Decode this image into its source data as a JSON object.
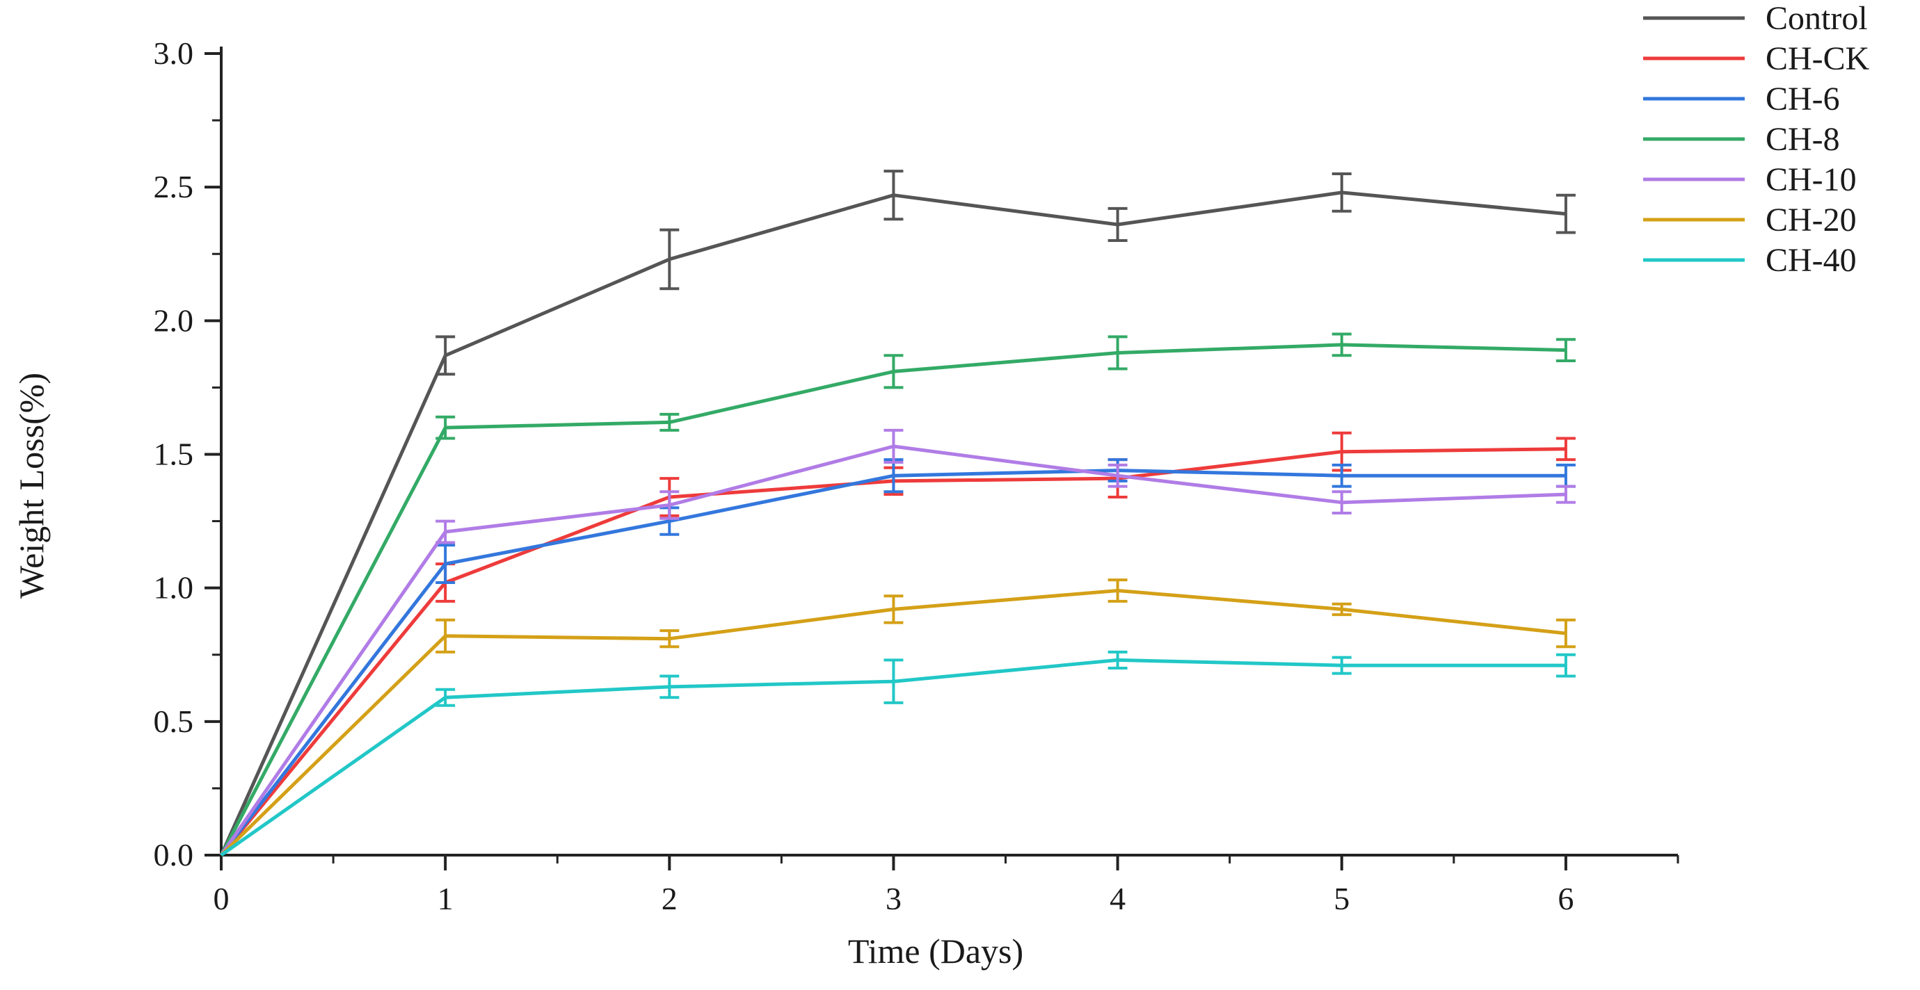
{
  "chart_data": {
    "type": "line",
    "title": "",
    "xlabel": "Time (Days)",
    "ylabel": "Weight Loss(%)",
    "x": [
      0,
      1,
      2,
      3,
      4,
      5,
      6
    ],
    "x_tick_labels": [
      "0",
      "1",
      "2",
      "3",
      "4",
      "5",
      "6"
    ],
    "xlim": [
      0,
      6.5
    ],
    "ylim": [
      0,
      3.0
    ],
    "y_ticks": [
      0.0,
      0.5,
      1.0,
      1.5,
      2.0,
      2.5,
      3.0
    ],
    "y_tick_labels": [
      "0.0",
      "0.5",
      "1.0",
      "1.5",
      "2.0",
      "2.5",
      "3.0"
    ],
    "grid": false,
    "legend_position": "top-right",
    "series": [
      {
        "name": "Control",
        "color": "#555555",
        "values": [
          0,
          1.87,
          2.23,
          2.47,
          2.36,
          2.48,
          2.4
        ],
        "errors": [
          0,
          0.07,
          0.11,
          0.09,
          0.06,
          0.07,
          0.07
        ]
      },
      {
        "name": "CH-CK",
        "color": "#ee3b3b",
        "values": [
          0,
          1.02,
          1.34,
          1.4,
          1.41,
          1.51,
          1.52
        ],
        "errors": [
          0,
          0.07,
          0.07,
          0.05,
          0.07,
          0.07,
          0.04
        ]
      },
      {
        "name": "CH-6",
        "color": "#3377dd",
        "values": [
          0,
          1.09,
          1.25,
          1.42,
          1.44,
          1.42,
          1.42
        ],
        "errors": [
          0,
          0.07,
          0.05,
          0.06,
          0.04,
          0.04,
          0.04
        ]
      },
      {
        "name": "CH-8",
        "color": "#33aa66",
        "values": [
          0,
          1.6,
          1.62,
          1.81,
          1.88,
          1.91,
          1.89
        ],
        "errors": [
          0,
          0.04,
          0.03,
          0.06,
          0.06,
          0.04,
          0.04
        ]
      },
      {
        "name": "CH-10",
        "color": "#b07ce6",
        "values": [
          0,
          1.21,
          1.31,
          1.53,
          1.42,
          1.32,
          1.35
        ],
        "errors": [
          0,
          0.04,
          0.05,
          0.06,
          0.04,
          0.04,
          0.03
        ]
      },
      {
        "name": "CH-20",
        "color": "#d4a017",
        "values": [
          0,
          0.82,
          0.81,
          0.92,
          0.99,
          0.92,
          0.83
        ],
        "errors": [
          0,
          0.06,
          0.03,
          0.05,
          0.04,
          0.02,
          0.05
        ]
      },
      {
        "name": "CH-40",
        "color": "#22c7c7",
        "values": [
          0,
          0.59,
          0.63,
          0.65,
          0.73,
          0.71,
          0.71
        ],
        "errors": [
          0,
          0.03,
          0.04,
          0.08,
          0.03,
          0.03,
          0.04
        ]
      }
    ]
  }
}
